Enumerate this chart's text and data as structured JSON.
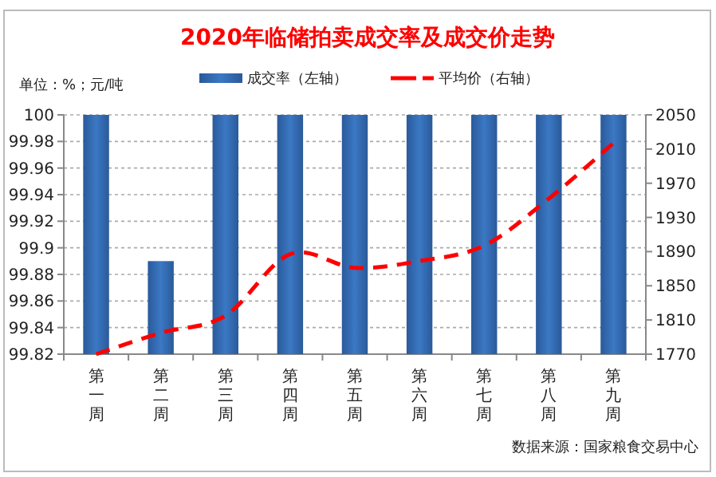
{
  "chart_data": {
    "type": "bar",
    "title": "2020年临储拍卖成交率及成交价走势",
    "categories": [
      "第一周",
      "第二周",
      "第三周",
      "第四周",
      "第五周",
      "第六周",
      "第七周",
      "第八周",
      "第九周"
    ],
    "series": [
      {
        "name": "成交率（左轴）",
        "color": "#3b78c4",
        "values": [
          100,
          99.89,
          100,
          100,
          100,
          100,
          100,
          100,
          100
        ]
      },
      {
        "name": "平均价（右轴）",
        "type": "line",
        "axis": "y2",
        "color": "#ff0000",
        "line_style": "dashed",
        "values": [
          1770,
          1795,
          1815,
          1887,
          1871,
          1879,
          1897,
          1952,
          2017
        ]
      }
    ],
    "ylim": [
      99.82,
      100
    ],
    "yticks": [
      99.82,
      99.84,
      99.86,
      99.88,
      99.9,
      99.92,
      99.94,
      99.96,
      99.98,
      100
    ],
    "y2lim": [
      1770,
      2050
    ],
    "y2ticks": [
      1770,
      1810,
      1850,
      1890,
      1930,
      1970,
      2010,
      2050
    ],
    "grid": "y",
    "legend": "top",
    "annotations": [
      "单位：%；元/吨",
      "数据来源：国家粮食交易中心"
    ]
  }
}
